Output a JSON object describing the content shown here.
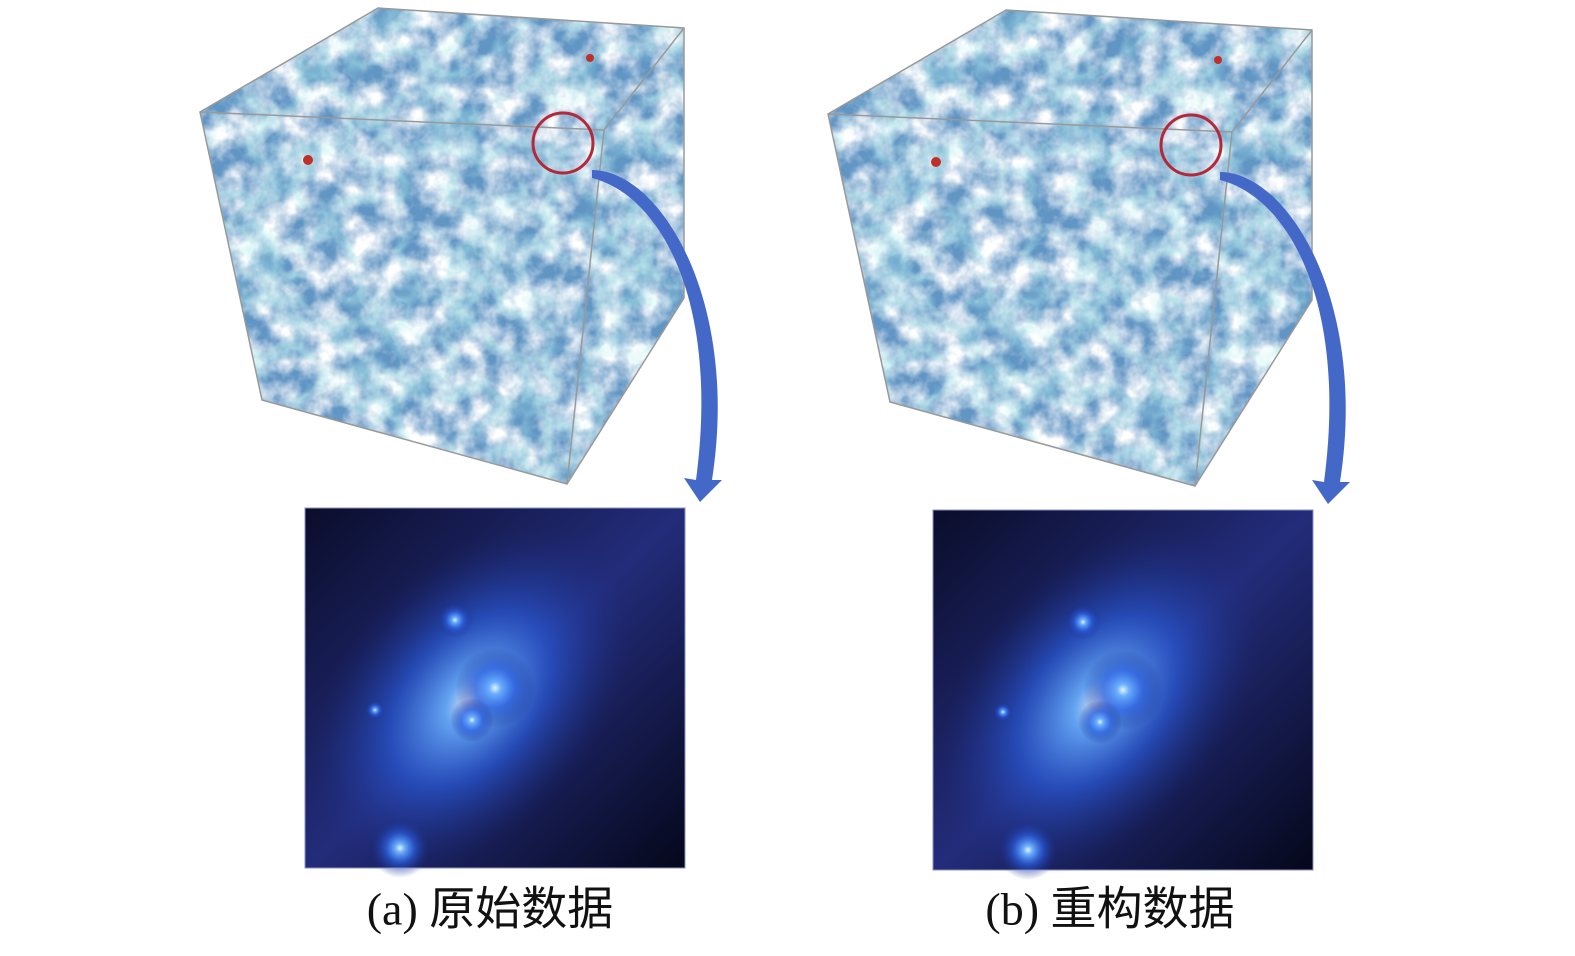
{
  "panels": [
    {
      "caption": "(a) 原始数据"
    },
    {
      "caption": "(b) 重构数据"
    }
  ]
}
